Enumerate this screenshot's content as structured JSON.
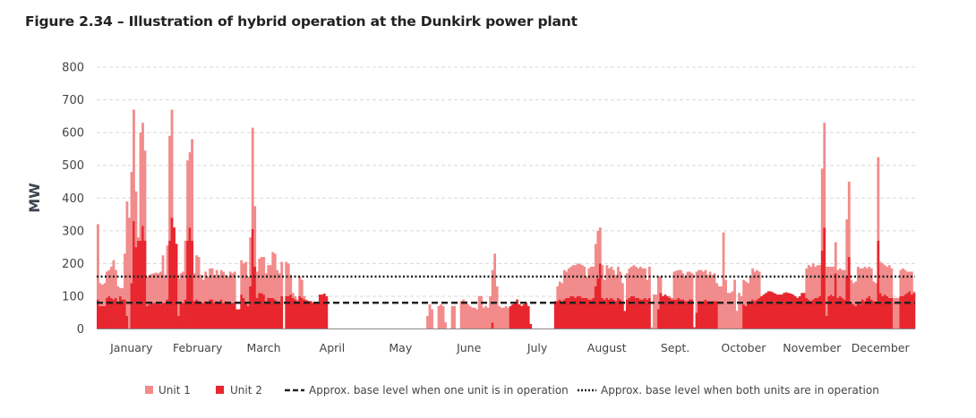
{
  "title": "Figure 2.34 – Illustration of hybrid operation at the Dunkirk power plant",
  "chart_data": {
    "type": "bar",
    "stacked": true,
    "title": "Figure 2.34 – Illustration of hybrid operation at the Dunkirk power plant",
    "xlabel": "",
    "ylabel": "MW",
    "ylim": [
      0,
      800
    ],
    "yticks": [
      0,
      100,
      200,
      300,
      400,
      500,
      600,
      700,
      800
    ],
    "grid": true,
    "legend_position": "bottom",
    "x_resolution": "daily",
    "months": [
      "January",
      "February",
      "March",
      "April",
      "May",
      "June",
      "July",
      "August",
      "Sept.",
      "October",
      "November",
      "December"
    ],
    "month_days": [
      31,
      28,
      31,
      30,
      31,
      30,
      31,
      31,
      30,
      31,
      30,
      31
    ],
    "colors": {
      "unit1": "#f28b8b",
      "unit2": "#e8262e",
      "reference": "#222222"
    },
    "reference_lines": [
      {
        "name": "Approx. base level when one unit is in operation",
        "value": 80,
        "style": "dashed"
      },
      {
        "name": "Approx. base level when both units are in operation",
        "value": 160,
        "style": "dotted"
      }
    ],
    "series": [
      {
        "name": "Unit 2",
        "values": [
          90,
          70,
          70,
          70,
          95,
          100,
          95,
          90,
          95,
          80,
          100,
          90,
          90,
          40,
          0,
          140,
          330,
          250,
          270,
          270,
          315,
          270,
          70,
          75,
          80,
          80,
          80,
          80,
          75,
          80,
          80,
          90,
          270,
          340,
          310,
          260,
          40,
          80,
          80,
          90,
          270,
          310,
          270,
          85,
          90,
          85,
          80,
          80,
          85,
          80,
          90,
          90,
          80,
          85,
          80,
          90,
          80,
          85,
          80,
          80,
          80,
          80,
          60,
          60,
          105,
          95,
          80,
          70,
          130,
          305,
          190,
          95,
          110,
          110,
          105,
          85,
          95,
          95,
          95,
          90,
          85,
          80,
          100,
          0,
          100,
          100,
          105,
          95,
          90,
          85,
          100,
          95,
          90,
          88,
          85,
          85,
          80,
          80,
          80,
          105,
          105,
          108,
          100,
          0,
          0,
          0,
          0,
          0,
          0,
          0,
          0,
          0,
          0,
          0,
          0,
          0,
          0,
          0,
          0,
          0,
          0,
          0,
          0,
          0,
          0,
          0,
          0,
          0,
          0,
          0,
          0,
          0,
          0,
          0,
          0,
          0,
          0,
          0,
          0,
          0,
          0,
          0,
          0,
          0,
          0,
          0,
          0,
          0,
          0,
          0,
          0,
          0,
          0,
          0,
          0,
          0,
          0,
          0,
          0,
          0,
          0,
          0,
          0,
          0,
          0,
          0,
          0,
          0,
          0,
          0,
          0,
          0,
          0,
          0,
          0,
          0,
          20,
          0,
          0,
          0,
          0,
          0,
          0,
          0,
          70,
          75,
          80,
          90,
          75,
          70,
          75,
          80,
          70,
          15,
          0,
          0,
          0,
          0,
          0,
          0,
          0,
          0,
          0,
          0,
          85,
          85,
          90,
          85,
          90,
          95,
          95,
          100,
          100,
          95,
          100,
          100,
          95,
          95,
          95,
          90,
          90,
          95,
          130,
          155,
          200,
          95,
          90,
          95,
          90,
          95,
          90,
          85,
          95,
          90,
          85,
          55,
          90,
          95,
          100,
          100,
          95,
          95,
          90,
          90,
          95,
          90,
          95,
          0,
          0,
          0,
          60,
          110,
          100,
          105,
          100,
          95,
          90,
          90,
          90,
          95,
          90,
          90,
          85,
          85,
          90,
          90,
          5,
          50,
          85,
          85,
          85,
          90,
          85,
          85,
          85,
          85,
          85,
          0,
          0,
          0,
          0,
          0,
          0,
          0,
          0,
          0,
          0,
          0,
          75,
          70,
          80,
          85,
          90,
          85,
          90,
          95,
          100,
          105,
          110,
          115,
          115,
          112,
          108,
          105,
          105,
          105,
          110,
          112,
          110,
          108,
          105,
          100,
          95,
          100,
          110,
          110,
          95,
          90,
          85,
          90,
          95,
          95,
          100,
          240,
          310,
          40,
          100,
          105,
          100,
          170,
          95,
          100,
          95,
          90,
          160,
          220,
          80,
          75,
          70,
          80,
          75,
          90,
          85,
          95,
          100,
          90,
          85,
          80,
          270,
          110,
          100,
          105,
          100,
          95,
          95,
          0,
          0,
          0,
          100,
          100,
          105,
          110,
          115,
          105,
          110
        ]
      },
      {
        "name": "Unit 1",
        "values": [
          230,
          70,
          65,
          70,
          80,
          80,
          95,
          120,
          85,
          50,
          25,
          35,
          140,
          350,
          340,
          340,
          340,
          170,
          10,
          330,
          315,
          275,
          90,
          90,
          88,
          90,
          92,
          90,
          100,
          145,
          85,
          165,
          320,
          330,
          0,
          0,
          115,
          90,
          95,
          180,
          245,
          230,
          310,
          85,
          135,
          135,
          85,
          70,
          90,
          80,
          95,
          95,
          85,
          95,
          85,
          90,
          95,
          80,
          80,
          95,
          90,
          95,
          0,
          0,
          105,
          105,
          125,
          90,
          150,
          310,
          185,
          80,
          105,
          110,
          115,
          85,
          100,
          100,
          140,
          140,
          95,
          90,
          105,
          0,
          105,
          100,
          60,
          15,
          10,
          5,
          60,
          55,
          10,
          2,
          0,
          0,
          0,
          0,
          0,
          0,
          0,
          0,
          0,
          0,
          0,
          0,
          0,
          0,
          0,
          0,
          0,
          0,
          0,
          0,
          0,
          0,
          0,
          0,
          0,
          0,
          0,
          0,
          0,
          0,
          0,
          0,
          0,
          0,
          0,
          0,
          0,
          0,
          0,
          0,
          0,
          0,
          0,
          0,
          0,
          0,
          0,
          0,
          0,
          0,
          0,
          0,
          0,
          40,
          75,
          60,
          0,
          0,
          70,
          75,
          70,
          20,
          0,
          0,
          70,
          70,
          0,
          0,
          85,
          90,
          85,
          75,
          70,
          65,
          65,
          60,
          100,
          100,
          65,
          70,
          65,
          100,
          160,
          230,
          130,
          70,
          65,
          65,
          70,
          65,
          0,
          0,
          0,
          0,
          0,
          0,
          0,
          0,
          0,
          0,
          0,
          0,
          0,
          0,
          0,
          0,
          0,
          0,
          0,
          0,
          0,
          45,
          55,
          55,
          90,
          80,
          90,
          90,
          95,
          100,
          100,
          98,
          100,
          95,
          65,
          95,
          100,
          95,
          130,
          145,
          110,
          100,
          60,
          100,
          95,
          95,
          90,
          80,
          95,
          85,
          55,
          0,
          80,
          90,
          90,
          95,
          95,
          90,
          100,
          95,
          90,
          60,
          95,
          5,
          105,
          105,
          100,
          50,
          0,
          0,
          0,
          5,
          5,
          85,
          88,
          85,
          90,
          80,
          75,
          90,
          85,
          80,
          0,
          125,
          95,
          95,
          90,
          90,
          80,
          90,
          80,
          85,
          55,
          130,
          130,
          295,
          150,
          110,
          110,
          115,
          150,
          55,
          110,
          100,
          75,
          75,
          60,
          75,
          95,
          90,
          90,
          80,
          0,
          0,
          0,
          0,
          0,
          0,
          0,
          0,
          0,
          0,
          0,
          0,
          0,
          0,
          0,
          0,
          0,
          0,
          0,
          0,
          90,
          105,
          105,
          110,
          95,
          100,
          95,
          250,
          320,
          150,
          90,
          85,
          90,
          95,
          85,
          85,
          85,
          90,
          175,
          230,
          70,
          65,
          75,
          110,
          110,
          95,
          105,
          90,
          90,
          95,
          60,
          60,
          255,
          95,
          100,
          90,
          90,
          100,
          90,
          95,
          95,
          95,
          80,
          85,
          75,
          65,
          60,
          70,
          5
        ]
      }
    ],
    "legend": [
      "Unit 1",
      "Unit 2",
      "Approx. base level when one unit is in operation",
      "Approx. base level when both units are in operation"
    ]
  }
}
